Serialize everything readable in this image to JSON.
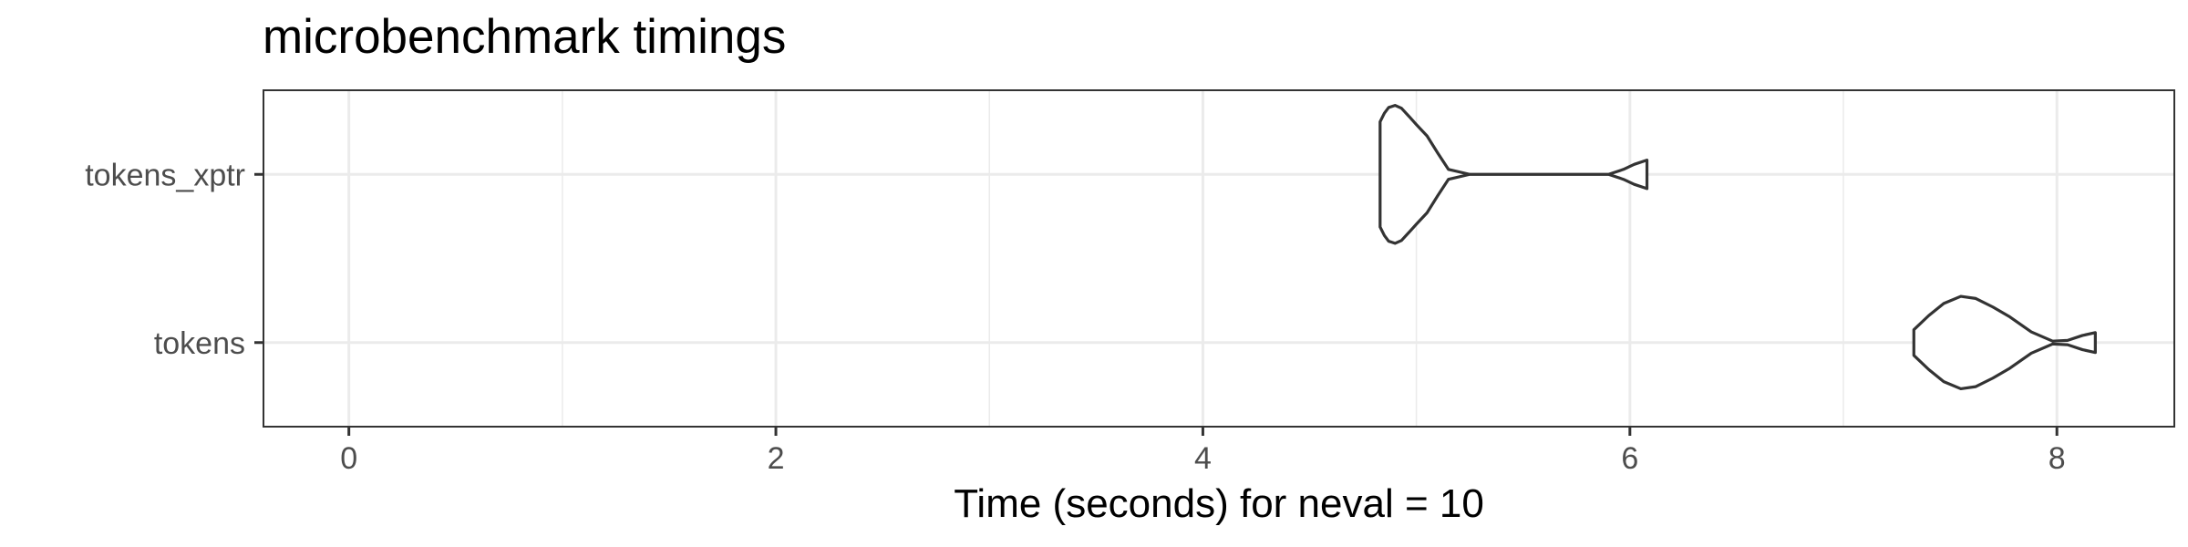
{
  "chart_data": {
    "type": "violin",
    "title": "microbenchmark timings",
    "xlabel": "Time (seconds) for neval = 10",
    "ylabel": "",
    "xlim": [
      -0.4,
      8.55
    ],
    "x_ticks": [
      0,
      2,
      4,
      6,
      8
    ],
    "x_minor_ticks": [
      1,
      3,
      5,
      7
    ],
    "categories": [
      "tokens_xptr",
      "tokens"
    ],
    "grid": true,
    "colors": {
      "outline": "#333333",
      "grid": "#ebebeb",
      "panel_border": "#333333",
      "background": "#ffffff"
    },
    "series": [
      {
        "name": "tokens_xptr",
        "min": 4.83,
        "max": 6.08,
        "profile": [
          [
            4.83,
            0.74
          ],
          [
            4.85,
            0.86
          ],
          [
            4.87,
            0.94
          ],
          [
            4.9,
            0.97
          ],
          [
            4.93,
            0.93
          ],
          [
            4.97,
            0.8
          ],
          [
            5.0,
            0.7
          ],
          [
            5.05,
            0.54
          ],
          [
            5.1,
            0.3
          ],
          [
            5.15,
            0.07
          ],
          [
            5.25,
            0.0
          ],
          [
            5.5,
            0.0
          ],
          [
            5.9,
            0.0
          ],
          [
            5.97,
            0.07
          ],
          [
            6.02,
            0.14
          ],
          [
            6.08,
            0.2
          ]
        ]
      },
      {
        "name": "tokens",
        "min": 7.33,
        "max": 8.18,
        "profile": [
          [
            7.33,
            0.18
          ],
          [
            7.4,
            0.38
          ],
          [
            7.47,
            0.55
          ],
          [
            7.55,
            0.65
          ],
          [
            7.62,
            0.62
          ],
          [
            7.7,
            0.5
          ],
          [
            7.78,
            0.36
          ],
          [
            7.88,
            0.15
          ],
          [
            7.98,
            0.02
          ],
          [
            8.05,
            0.03
          ],
          [
            8.12,
            0.1
          ],
          [
            8.18,
            0.14
          ]
        ]
      }
    ]
  }
}
